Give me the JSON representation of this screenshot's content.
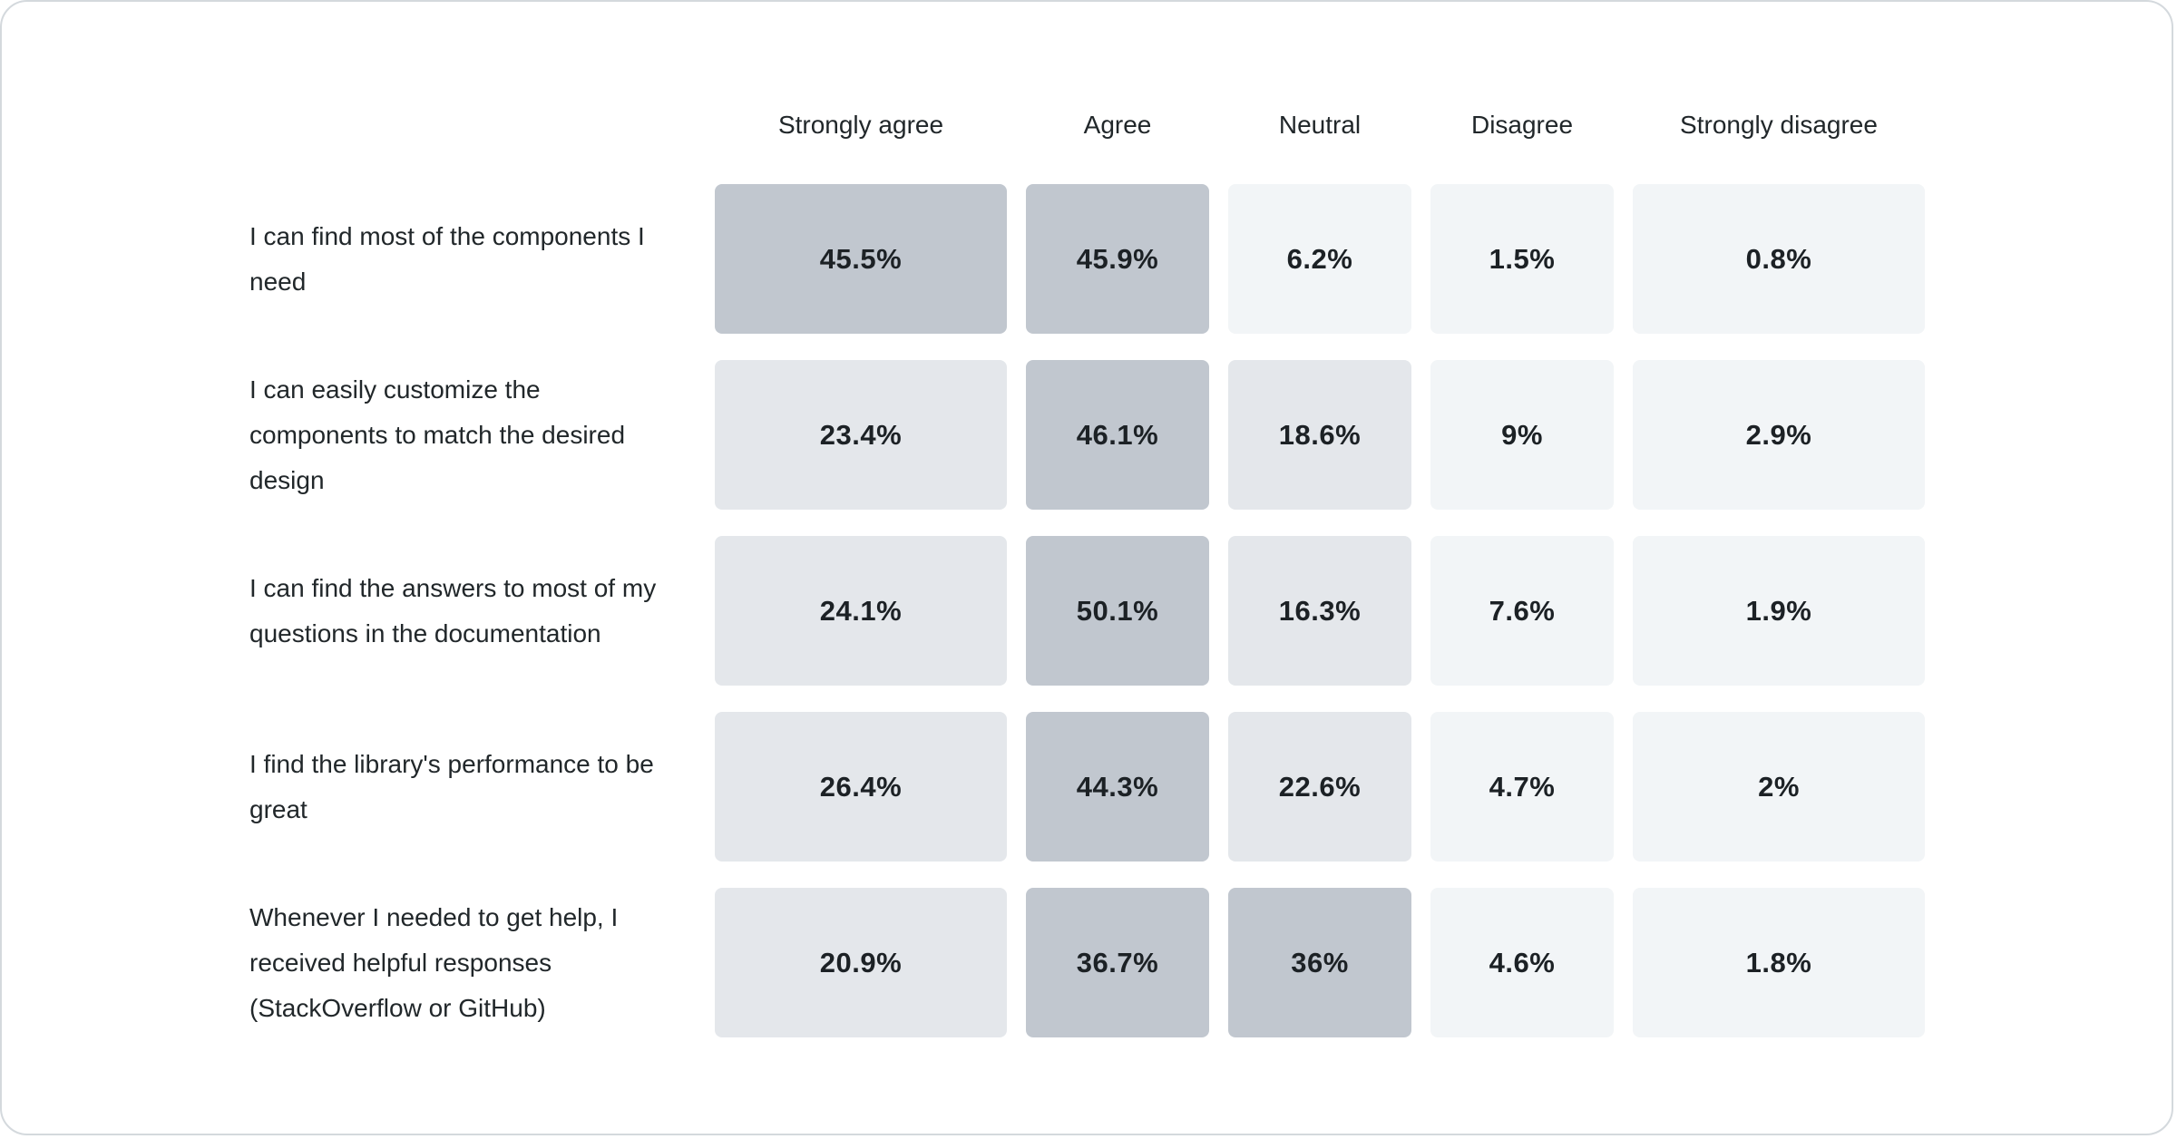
{
  "chart_data": {
    "type": "heatmap",
    "title": "",
    "xlabel": "",
    "ylabel": "",
    "legend": "none",
    "categories": [
      "Strongly agree",
      "Agree",
      "Neutral",
      "Disagree",
      "Strongly disagree"
    ],
    "rows": [
      {
        "label": "I can find most of the components I need",
        "values": [
          45.5,
          45.9,
          6.2,
          1.5,
          0.8
        ]
      },
      {
        "label": "I can easily customize the components to match the desired design",
        "values": [
          23.4,
          46.1,
          18.6,
          9,
          2.9
        ]
      },
      {
        "label": "I can find the answers to most of my questions in the documentation",
        "values": [
          24.1,
          50.1,
          16.3,
          7.6,
          1.9
        ]
      },
      {
        "label": "I find the library's performance to be great",
        "values": [
          26.4,
          44.3,
          22.6,
          4.7,
          2
        ]
      },
      {
        "label": "Whenever I needed to get help, I received helpful responses (StackOverflow or GitHub)",
        "values": [
          20.9,
          36.7,
          36,
          4.6,
          1.8
        ]
      }
    ],
    "value_suffix": "%",
    "value_range": [
      0,
      50.1
    ],
    "color_scale": {
      "bins": [
        {
          "max": 10,
          "color": "#f2f5f7"
        },
        {
          "max": 30,
          "color": "#e4e7eb"
        },
        {
          "max": 101,
          "color": "#c1c7cf"
        }
      ]
    },
    "text_color": "#21272a",
    "card_border_color": "#d4d9dd",
    "background_color": "#ffffff"
  }
}
